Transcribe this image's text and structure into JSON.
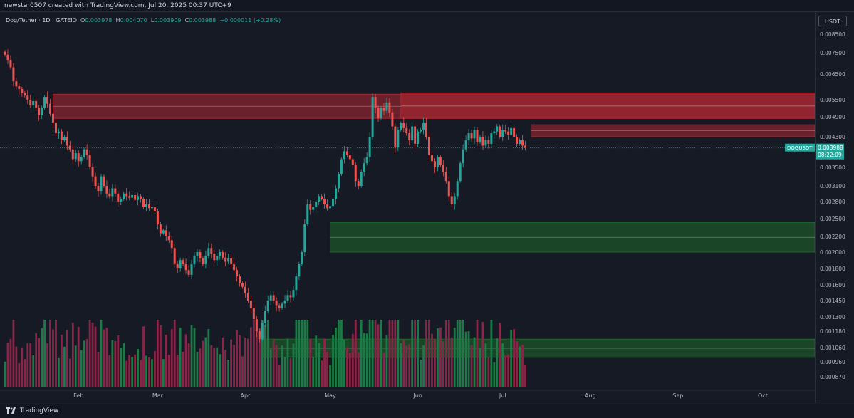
{
  "header": {
    "caption": "newstar0507 created with TradingView.com, Jul 20, 2025 00:37 UTC+9"
  },
  "legend": {
    "pair": "Dog/Tether",
    "interval": "1D",
    "exchange": "GATEIO",
    "open_label": "O",
    "open": "0.003978",
    "high_label": "H",
    "high": "0.004070",
    "low_label": "L",
    "low": "0.003909",
    "close_label": "C",
    "close": "0.003988",
    "change": "+0.000011 (+0.28%)"
  },
  "price_axis": {
    "currency": "USDT",
    "labels": [
      "0.008500",
      "0.007500",
      "0.006500",
      "0.005500",
      "0.004900",
      "0.004300",
      "0.003500",
      "0.003100",
      "0.002800",
      "0.002500",
      "0.002200",
      "0.002000",
      "0.001800",
      "0.001600",
      "0.001450",
      "0.001300",
      "0.001180",
      "0.001060",
      "0.000960",
      "0.000870"
    ],
    "last_price_tag": {
      "symbol": "DOGUSDT",
      "price": "0.003988",
      "countdown": "08:22:09"
    }
  },
  "time_axis": {
    "labels": [
      "Feb",
      "Mar",
      "Apr",
      "May",
      "Jun",
      "Jul",
      "Aug",
      "Sep",
      "Oct"
    ]
  },
  "footer": {
    "brand": "TradingView"
  },
  "colors": {
    "up": "#26a69a",
    "down": "#ef5350",
    "supply_zone": "#b22833",
    "demand_zone": "#1f6b2a",
    "volume_up": "#1b7a45",
    "volume_down": "#8c2448",
    "background": "#161a25"
  },
  "chart_data": {
    "type": "candlestick",
    "symbol": "DOGUSDT",
    "interval": "1D",
    "scale": "log",
    "start_date": "2025-01-06",
    "last_candle": {
      "open": 0.003978,
      "high": 0.00407,
      "low": 0.003909,
      "close": 0.003988
    },
    "closes": [
      0.0074,
      0.00715,
      0.0068,
      0.0062,
      0.006,
      0.0059,
      0.00575,
      0.00565,
      0.0055,
      0.0053,
      0.00545,
      0.0052,
      0.00495,
      0.0052,
      0.0056,
      0.00535,
      0.005,
      0.0047,
      0.0044,
      0.00445,
      0.0042,
      0.0043,
      0.00405,
      0.00395,
      0.0037,
      0.00385,
      0.00365,
      0.00375,
      0.00395,
      0.0038,
      0.0035,
      0.0033,
      0.0031,
      0.003,
      0.0033,
      0.0031,
      0.00295,
      0.0029,
      0.00305,
      0.00295,
      0.0028,
      0.00285,
      0.00295,
      0.0029,
      0.00287,
      0.00292,
      0.00283,
      0.0029,
      0.00285,
      0.0027,
      0.00275,
      0.00268,
      0.0027,
      0.00262,
      0.0024,
      0.00225,
      0.0023,
      0.0022,
      0.00215,
      0.00205,
      0.00185,
      0.0018,
      0.0019,
      0.00185,
      0.00178,
      0.00172,
      0.00185,
      0.00195,
      0.002,
      0.00192,
      0.00185,
      0.00195,
      0.00205,
      0.00198,
      0.0019,
      0.00195,
      0.002,
      0.00193,
      0.00188,
      0.00192,
      0.00185,
      0.00178,
      0.0017,
      0.00162,
      0.00158,
      0.00152,
      0.00145,
      0.00138,
      0.00128,
      0.00118,
      0.00112,
      0.00125,
      0.00135,
      0.00145,
      0.0015,
      0.00145,
      0.0014,
      0.00138,
      0.00142,
      0.00145,
      0.0015,
      0.00148,
      0.00155,
      0.0017,
      0.00185,
      0.002,
      0.0024,
      0.00275,
      0.00265,
      0.0027,
      0.0028,
      0.0029,
      0.00285,
      0.00275,
      0.00268,
      0.00272,
      0.00285,
      0.00305,
      0.00335,
      0.0037,
      0.0039,
      0.0038,
      0.0037,
      0.00355,
      0.0032,
      0.0031,
      0.0034,
      0.0036,
      0.00375,
      0.0043,
      0.0056,
      0.0052,
      0.00485,
      0.0052,
      0.0051,
      0.0054,
      0.00505,
      0.0046,
      0.004,
      0.0045,
      0.0047,
      0.00455,
      0.0044,
      0.0042,
      0.0046,
      0.0041,
      0.00445,
      0.0045,
      0.0047,
      0.0043,
      0.0038,
      0.00365,
      0.0035,
      0.00375,
      0.00355,
      0.0034,
      0.0032,
      0.0029,
      0.00275,
      0.0029,
      0.0032,
      0.0036,
      0.00395,
      0.0042,
      0.0044,
      0.00425,
      0.0045,
      0.00415,
      0.0043,
      0.00405,
      0.0042,
      0.0041,
      0.0044,
      0.00445,
      0.0046,
      0.0043,
      0.0045,
      0.00445,
      0.00435,
      0.00455,
      0.0043,
      0.0041,
      0.0042,
      0.00405,
      0.003988
    ],
    "zones": [
      {
        "kind": "supply",
        "from": "2025-01-23",
        "bottom": 0.00485,
        "top": 0.0057
      },
      {
        "kind": "supply",
        "from": "2025-05-26",
        "bottom": 0.00485,
        "top": 0.00575
      },
      {
        "kind": "supply",
        "from": "2025-07-11",
        "bottom": 0.0043,
        "top": 0.00465
      },
      {
        "kind": "demand",
        "from": "2025-05-01",
        "bottom": 0.002,
        "top": 0.00243
      },
      {
        "kind": "demand",
        "from": "2025-04-07",
        "bottom": 0.00099,
        "top": 0.00112
      }
    ]
  }
}
